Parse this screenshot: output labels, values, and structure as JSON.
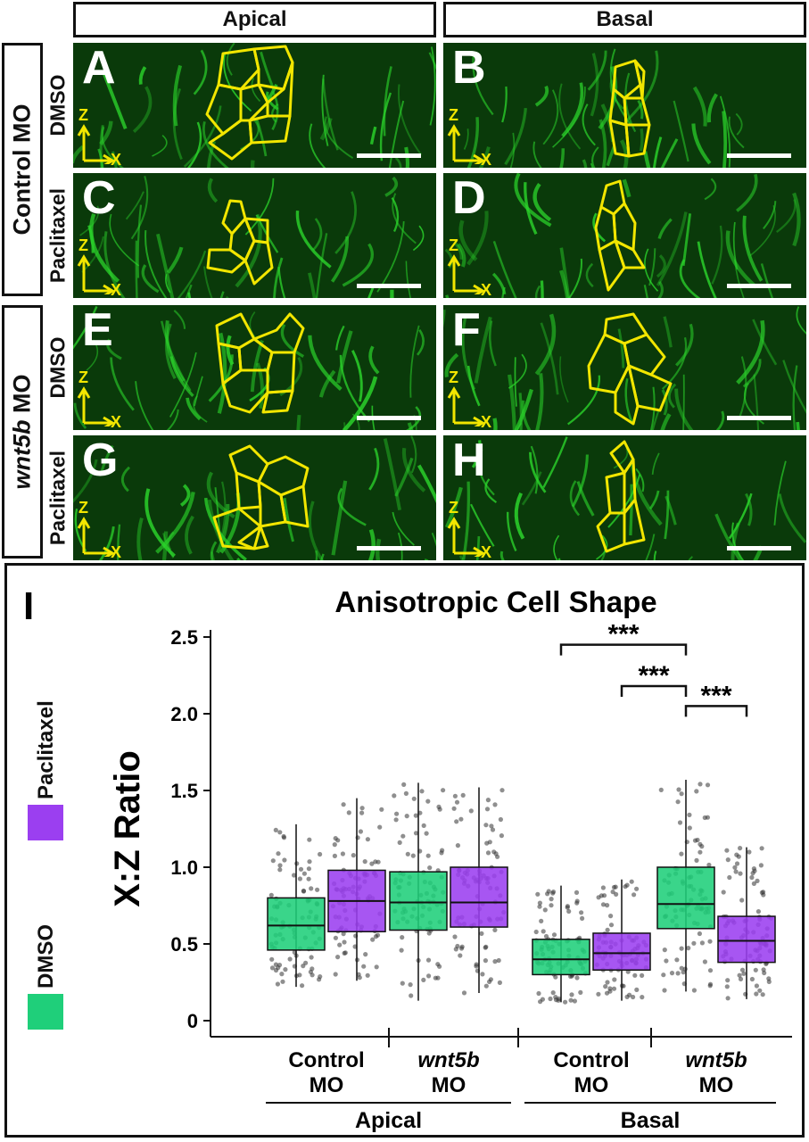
{
  "columns": [
    "Apical",
    "Basal"
  ],
  "rows": [
    {
      "label_plain": "Control MO",
      "label_italic": "",
      "conditions": [
        "DMSO",
        "Paclitaxel"
      ]
    },
    {
      "label_plain": " MO",
      "label_italic": "wnt5b",
      "conditions": [
        "DMSO",
        "Paclitaxel"
      ]
    }
  ],
  "panels": [
    {
      "letter": "A"
    },
    {
      "letter": "B"
    },
    {
      "letter": "C"
    },
    {
      "letter": "D"
    },
    {
      "letter": "E"
    },
    {
      "letter": "F"
    },
    {
      "letter": "G"
    },
    {
      "letter": "H"
    }
  ],
  "axis_labels": {
    "z": "Z",
    "x": "X"
  },
  "colors": {
    "dmso": "#1fcf7a",
    "paclitaxel": "#9b3ff0",
    "outline": "#f2e600",
    "membrane": "#2bd32b"
  },
  "chart_data": {
    "type": "box",
    "panel_letter": "I",
    "title": "Anisotropic Cell Shape",
    "ylabel": "X:Z Ratio",
    "ylim": [
      0,
      2.5
    ],
    "yticks": [
      "0",
      "0.5",
      "1.0",
      "1.5",
      "2.0",
      "2.5"
    ],
    "groups": [
      {
        "region": "Apical",
        "morpholino_plain": "Control",
        "morpholino_italic": "",
        "morpholino_suffix": "MO"
      },
      {
        "region": "Apical",
        "morpholino_plain": "",
        "morpholino_italic": "wnt5b",
        "morpholino_suffix": "MO"
      },
      {
        "region": "Basal",
        "morpholino_plain": "Control",
        "morpholino_italic": "",
        "morpholino_suffix": "MO"
      },
      {
        "region": "Basal",
        "morpholino_plain": "",
        "morpholino_italic": "wnt5b",
        "morpholino_suffix": "MO"
      }
    ],
    "regions": [
      "Apical",
      "Basal"
    ],
    "series": [
      {
        "name": "DMSO",
        "color": "#1fcf7a",
        "boxes": [
          {
            "group": 0,
            "q1": 0.46,
            "median": 0.62,
            "q3": 0.8,
            "whisker_low": 0.22,
            "whisker_high": 1.28
          },
          {
            "group": 1,
            "q1": 0.59,
            "median": 0.77,
            "q3": 0.97,
            "whisker_low": 0.13,
            "whisker_high": 1.55
          },
          {
            "group": 2,
            "q1": 0.3,
            "median": 0.4,
            "q3": 0.53,
            "whisker_low": 0.12,
            "whisker_high": 0.88
          },
          {
            "group": 3,
            "q1": 0.6,
            "median": 0.76,
            "q3": 1.0,
            "whisker_low": 0.19,
            "whisker_high": 1.57
          }
        ]
      },
      {
        "name": "Paclitaxel",
        "color": "#9b3ff0",
        "boxes": [
          {
            "group": 0,
            "q1": 0.58,
            "median": 0.78,
            "q3": 0.98,
            "whisker_low": 0.26,
            "whisker_high": 1.45
          },
          {
            "group": 1,
            "q1": 0.61,
            "median": 0.77,
            "q3": 1.0,
            "whisker_low": 0.18,
            "whisker_high": 1.52
          },
          {
            "group": 2,
            "q1": 0.33,
            "median": 0.44,
            "q3": 0.57,
            "whisker_low": 0.13,
            "whisker_high": 0.92
          },
          {
            "group": 3,
            "q1": 0.38,
            "median": 0.52,
            "q3": 0.68,
            "whisker_low": 0.14,
            "whisker_high": 1.13
          }
        ]
      }
    ],
    "significance": [
      {
        "from_box": [
          2,
          "DMSO"
        ],
        "to_box": [
          3,
          "DMSO"
        ],
        "label": "***",
        "y": 2.45
      },
      {
        "from_box": [
          2,
          "Paclitaxel"
        ],
        "to_box": [
          3,
          "DMSO"
        ],
        "label": "***",
        "y": 2.18
      },
      {
        "from_box": [
          3,
          "DMSO"
        ],
        "to_box": [
          3,
          "Paclitaxel"
        ],
        "label": "***",
        "y": 2.05
      }
    ]
  }
}
